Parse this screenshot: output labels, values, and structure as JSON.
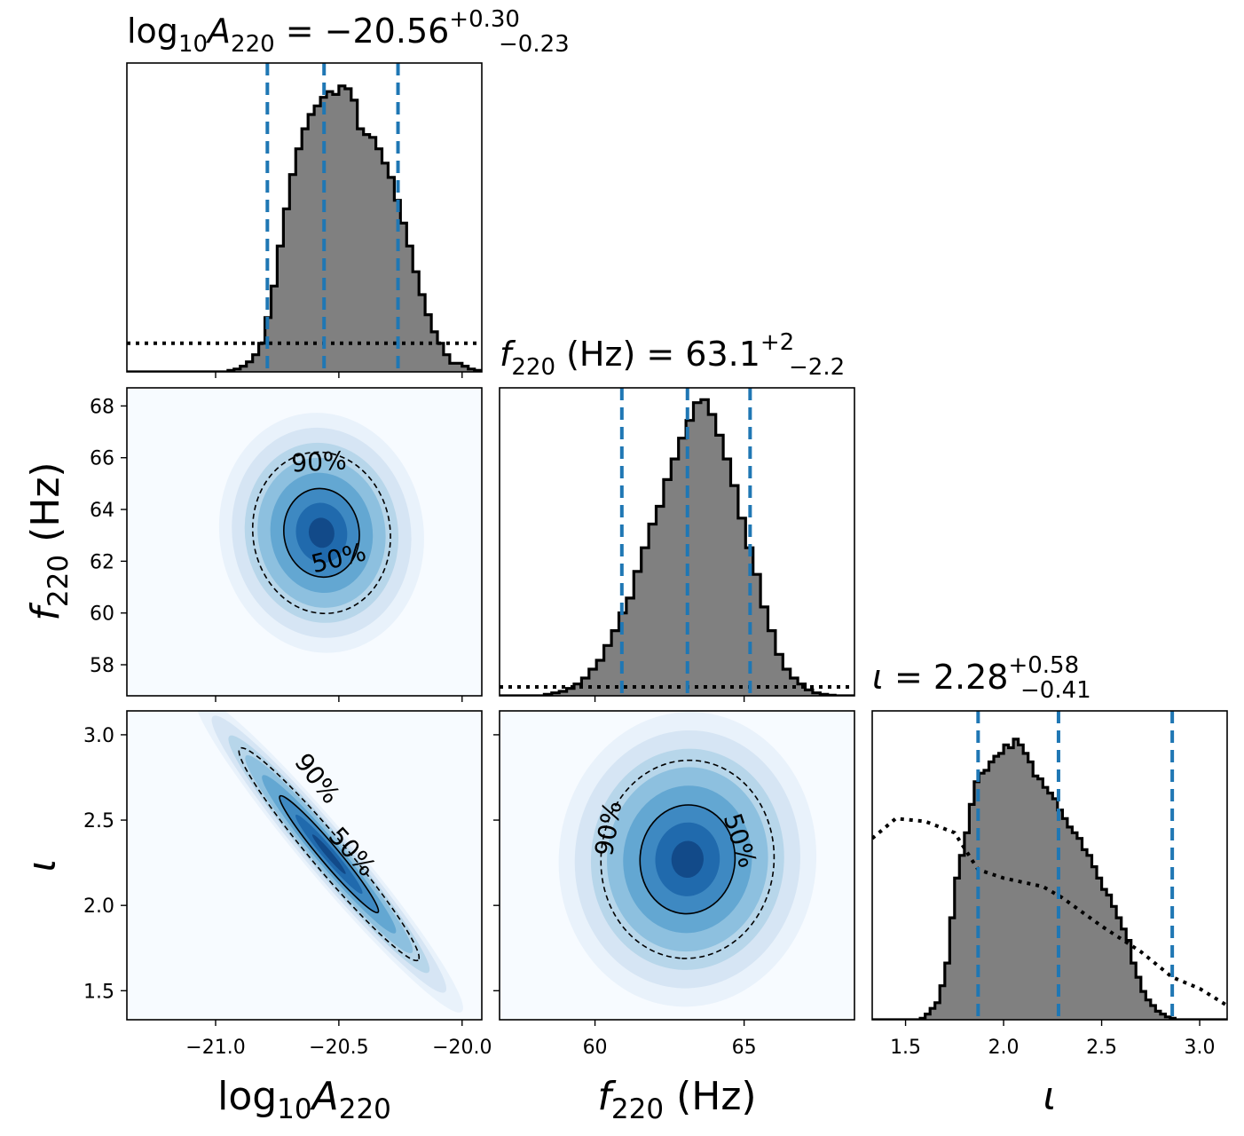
{
  "figure": {
    "type": "corner-plot",
    "colors": {
      "histogram_fill": "#808080",
      "histogram_edge": "#000000",
      "quantile_lines": "#1f77b4",
      "prior_line": "#000000",
      "density_colormap": "Blues"
    }
  },
  "chart_data": [
    {
      "type": "histogram",
      "panel": "log10A220-marginal",
      "title": {
        "base": "log",
        "sub1": "10",
        "A": "A",
        "sub2": "220",
        "eq": " = −20.56",
        "sup": "+0.30",
        "sub": "−0.23"
      },
      "xlim": [
        -21.36,
        -19.92
      ],
      "quantiles": [
        -20.79,
        -20.56,
        -20.26
      ],
      "bin_edges_start": -21.0,
      "bin_width": 0.025,
      "counts": [
        0,
        0,
        0.005,
        0.01,
        0.02,
        0.035,
        0.06,
        0.1,
        0.19,
        0.3,
        0.44,
        0.57,
        0.69,
        0.78,
        0.85,
        0.9,
        0.93,
        0.96,
        0.98,
        0.97,
        1.0,
        0.99,
        0.95,
        0.85,
        0.83,
        0.82,
        0.78,
        0.73,
        0.68,
        0.6,
        0.52,
        0.44,
        0.35,
        0.27,
        0.2,
        0.14,
        0.1,
        0.06,
        0.03,
        0.03,
        0.02,
        0.01,
        0.005,
        0
      ],
      "prior_y": 0.1,
      "yscale_top": 1.08
    },
    {
      "type": "histogram",
      "panel": "f220-marginal",
      "title": {
        "f": "f",
        "sub": "220",
        "rest": " (Hz) = 63.1",
        "sup": "+2",
        "subscr": "−2.2"
      },
      "xlim": [
        56.8,
        68.7
      ],
      "quantiles": [
        60.9,
        63.1,
        65.2
      ],
      "bin_edges_start": 58.3,
      "bin_width": 0.25,
      "counts": [
        0.005,
        0.01,
        0.015,
        0.025,
        0.04,
        0.06,
        0.09,
        0.12,
        0.17,
        0.22,
        0.28,
        0.33,
        0.42,
        0.5,
        0.58,
        0.64,
        0.73,
        0.8,
        0.87,
        0.93,
        0.99,
        1.0,
        0.95,
        0.88,
        0.8,
        0.71,
        0.6,
        0.5,
        0.41,
        0.3,
        0.22,
        0.14,
        0.09,
        0.06,
        0.04,
        0.02,
        0.01,
        0.005,
        0.002
      ],
      "prior_y": 0.03,
      "yscale_top": 1.04
    },
    {
      "type": "histogram",
      "panel": "iota-marginal",
      "title": {
        "iota": "ι",
        "eq": " = 2.28",
        "sup": "+0.58",
        "sub": "−0.41"
      },
      "xlim": [
        1.33,
        3.14
      ],
      "quantiles": [
        1.87,
        2.28,
        2.86
      ],
      "bin_edges_start": 1.55,
      "bin_width": 0.025,
      "counts": [
        0,
        0.005,
        0.02,
        0.04,
        0.06,
        0.12,
        0.2,
        0.36,
        0.5,
        0.58,
        0.66,
        0.76,
        0.84,
        0.87,
        0.88,
        0.91,
        0.93,
        0.94,
        0.97,
        0.96,
        0.99,
        0.97,
        0.94,
        0.91,
        0.86,
        0.85,
        0.82,
        0.8,
        0.78,
        0.74,
        0.71,
        0.68,
        0.66,
        0.64,
        0.6,
        0.58,
        0.54,
        0.5,
        0.46,
        0.44,
        0.4,
        0.36,
        0.32,
        0.28,
        0.2,
        0.15,
        0.1,
        0.07,
        0.05,
        0.03,
        0.02,
        0.01,
        0.005,
        0
      ],
      "prior": [
        [
          1.33,
          0.64
        ],
        [
          1.45,
          0.71
        ],
        [
          1.6,
          0.7
        ],
        [
          1.75,
          0.66
        ],
        [
          1.87,
          0.53
        ],
        [
          2.0,
          0.5
        ],
        [
          2.2,
          0.47
        ],
        [
          2.3,
          0.43
        ],
        [
          2.5,
          0.33
        ],
        [
          2.7,
          0.24
        ],
        [
          2.86,
          0.15
        ],
        [
          3.0,
          0.11
        ],
        [
          3.14,
          0.05
        ]
      ],
      "yscale_top": 1.09
    },
    {
      "type": "heatmap",
      "panel": "f220-vs-log10A220",
      "x": "log10A220",
      "y": "f220",
      "xlim": [
        -21.36,
        -19.92
      ],
      "ylim": [
        56.8,
        68.7
      ],
      "mean": [
        -20.57,
        63.1
      ],
      "sd": [
        0.13,
        1.45
      ],
      "corr": -0.05,
      "contours": [
        "50%",
        "90%"
      ]
    },
    {
      "type": "heatmap",
      "panel": "iota-vs-log10A220",
      "x": "log10A220",
      "y": "iota",
      "xlim": [
        -21.36,
        -19.92
      ],
      "ylim": [
        1.33,
        3.14
      ],
      "mean": [
        -20.54,
        2.3
      ],
      "sd": [
        0.17,
        0.29
      ],
      "corr": -0.97,
      "contours": [
        "90%",
        "50%"
      ]
    },
    {
      "type": "heatmap",
      "panel": "iota-vs-f220",
      "x": "f220",
      "y": "iota",
      "xlim": [
        56.8,
        68.7
      ],
      "ylim": [
        1.33,
        3.14
      ],
      "mean": [
        63.1,
        2.27
      ],
      "sd": [
        1.35,
        0.27
      ],
      "corr": 0.02,
      "contours": [
        "90%",
        "50%"
      ]
    }
  ],
  "axes": {
    "xlabel_A": {
      "base": "log",
      "sub1": "10",
      "A": "A",
      "sub2": "220"
    },
    "xlabel_f": {
      "f": "f",
      "sub": "220",
      "rest": " (Hz)"
    },
    "xlabel_iota": "ι",
    "ylabel_f": {
      "f": "f",
      "sub": "220",
      "rest": " (Hz)"
    },
    "ylabel_iota": "ι",
    "xticks_A": [
      {
        "v": -21.0,
        "label": "−21.0"
      },
      {
        "v": -20.5,
        "label": "−20.5"
      },
      {
        "v": -20.0,
        "label": "−20.0"
      }
    ],
    "xticks_f": [
      {
        "v": 60,
        "label": "60"
      },
      {
        "v": 65,
        "label": "65"
      }
    ],
    "xticks_iota": [
      {
        "v": 1.5,
        "label": "1.5"
      },
      {
        "v": 2.0,
        "label": "2.0"
      },
      {
        "v": 2.5,
        "label": "2.5"
      },
      {
        "v": 3.0,
        "label": "3.0"
      }
    ],
    "yticks_f": [
      {
        "v": 58,
        "label": "58"
      },
      {
        "v": 60,
        "label": "60"
      },
      {
        "v": 62,
        "label": "62"
      },
      {
        "v": 64,
        "label": "64"
      },
      {
        "v": 66,
        "label": "66"
      },
      {
        "v": 68,
        "label": "68"
      }
    ],
    "yticks_iota": [
      {
        "v": 1.5,
        "label": "1.5"
      },
      {
        "v": 2.0,
        "label": "2.0"
      },
      {
        "v": 2.5,
        "label": "2.5"
      },
      {
        "v": 3.0,
        "label": "3.0"
      }
    ]
  }
}
